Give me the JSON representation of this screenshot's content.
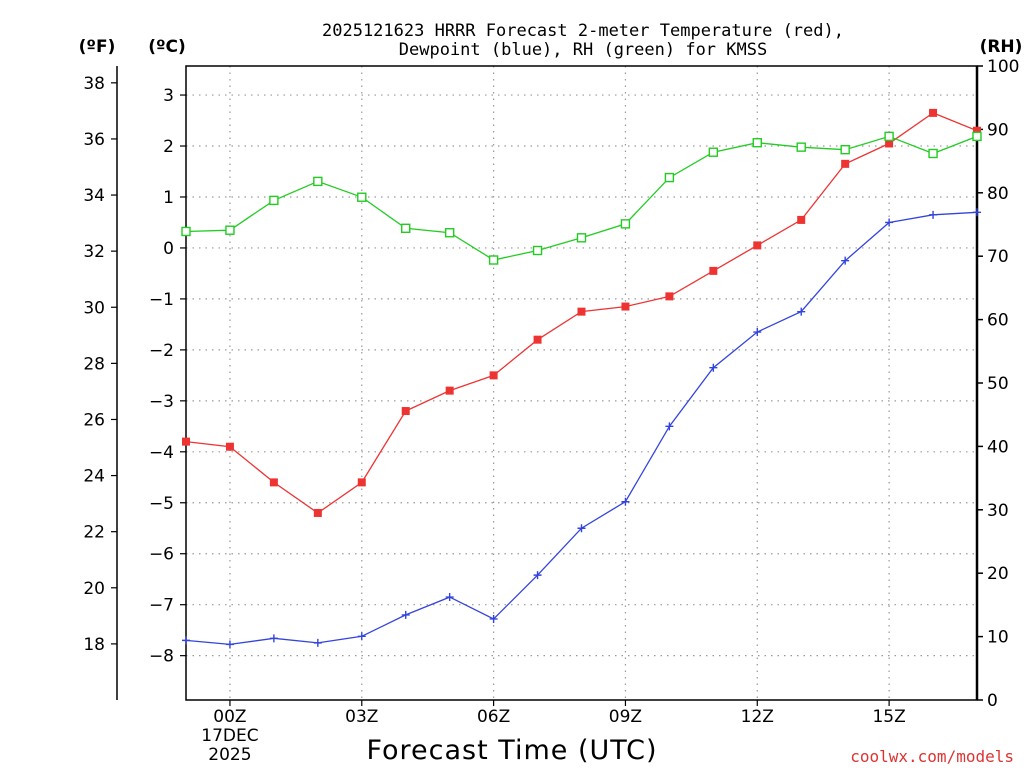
{
  "chart_data": {
    "type": "line",
    "title_lines": [
      "2025121623 HRRR Forecast 2-meter Temperature (red),",
      "Dewpoint (blue), RH (green) for KMSS"
    ],
    "xlabel": "Forecast Time (UTC)",
    "credit": "coolwx.com/models",
    "units": {
      "fahrenheit": "(ºF)",
      "celsius": "(ºC)",
      "rh": "(RH)"
    },
    "x_hours": [
      -1,
      0,
      1,
      2,
      3,
      4,
      5,
      6,
      7,
      8,
      9,
      10,
      11,
      12,
      13,
      14,
      15,
      16,
      17
    ],
    "x_ticks": [
      {
        "hour": 0,
        "label": "00Z",
        "date": "17DEC",
        "year": "2025"
      },
      {
        "hour": 3,
        "label": "03Z"
      },
      {
        "hour": 6,
        "label": "06Z"
      },
      {
        "hour": 9,
        "label": "09Z"
      },
      {
        "hour": 12,
        "label": "12Z"
      },
      {
        "hour": 15,
        "label": "15Z"
      }
    ],
    "x_range": [
      -1,
      17
    ],
    "celsius_axis": {
      "range": [
        -8.87,
        3.57
      ],
      "ticks": [
        3,
        2,
        1,
        0,
        -1,
        -2,
        -3,
        -4,
        -5,
        -6,
        -7,
        -8
      ],
      "tick_labels": [
        "3",
        "2",
        "1",
        "0",
        "−1",
        "−2",
        "−3",
        "−4",
        "−5",
        "−6",
        "−7",
        "−8"
      ]
    },
    "fahrenheit_axis": {
      "range": [
        16.0,
        38.6
      ],
      "ticks": [
        38,
        36,
        34,
        32,
        30,
        28,
        26,
        24,
        22,
        20,
        18
      ]
    },
    "rh_axis": {
      "range": [
        0,
        100
      ],
      "ticks": [
        100,
        90,
        80,
        70,
        60,
        50,
        40,
        30,
        20,
        10,
        0
      ]
    },
    "series": [
      {
        "name": "2-meter Temperature",
        "unit": "C",
        "color": "#ee3333",
        "marker": "filled-square",
        "values": [
          -3.8,
          -3.9,
          -4.6,
          -5.2,
          -4.6,
          -3.2,
          -2.8,
          -2.5,
          -1.8,
          -1.25,
          -1.15,
          -0.95,
          -0.45,
          0.05,
          0.55,
          1.65,
          2.05,
          2.65,
          2.3
        ]
      },
      {
        "name": "Dewpoint",
        "unit": "C",
        "color": "#3344dd",
        "marker": "plus",
        "values": [
          -7.7,
          -7.78,
          -7.66,
          -7.75,
          -7.62,
          -7.2,
          -6.85,
          -7.28,
          -6.42,
          -5.5,
          -4.98,
          -3.5,
          -2.35,
          -1.65,
          -1.25,
          -0.25,
          0.5,
          0.65,
          0.7
        ]
      },
      {
        "name": "RH",
        "unit": "%",
        "color": "#22cc22",
        "marker": "open-square",
        "values": [
          73.9,
          74.1,
          78.8,
          81.8,
          79.3,
          74.4,
          73.7,
          69.4,
          70.9,
          72.9,
          75.1,
          82.4,
          86.4,
          87.9,
          87.2,
          86.8,
          88.9,
          86.2,
          88.9
        ]
      }
    ]
  }
}
